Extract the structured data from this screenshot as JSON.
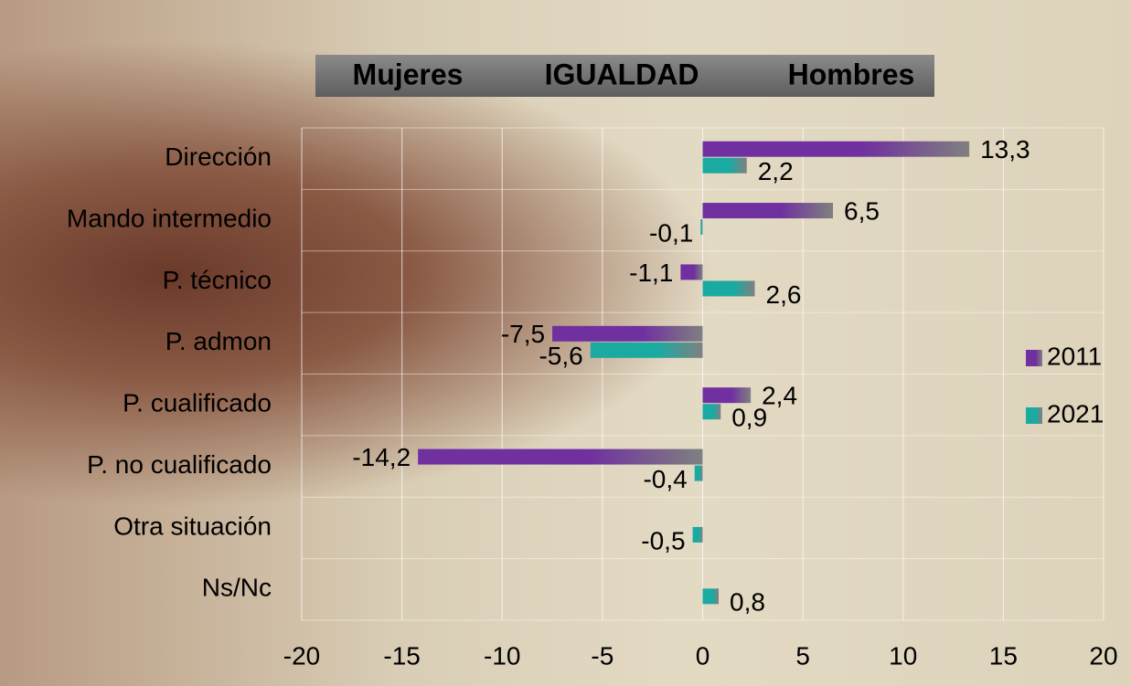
{
  "chart_data": {
    "type": "hbar",
    "title": [
      "Mujeres",
      "IGUALDAD",
      "Hombres"
    ],
    "categories": [
      "Dirección",
      "Mando intermedio",
      "P. técnico",
      "P. admon",
      "P. cualificado",
      "P. no cualificado",
      "Otra situación",
      "Ns/Nc"
    ],
    "series": [
      {
        "name": "2011",
        "color": "#7030a0",
        "values": [
          13.3,
          6.5,
          -1.1,
          -7.5,
          2.4,
          -14.2,
          null,
          null
        ],
        "value_labels": [
          "13,3",
          "6,5",
          "-1,1",
          "-7,5",
          "2,4",
          "-14,2",
          null,
          null
        ]
      },
      {
        "name": "2021",
        "color": "#1aaaa2",
        "values": [
          2.2,
          -0.1,
          2.6,
          -5.6,
          0.9,
          -0.4,
          -0.5,
          0.8
        ],
        "value_labels": [
          "2,2",
          "-0,1",
          "2,6",
          "-5,6",
          "0,9",
          "-0,4",
          "-0,5",
          "0,8"
        ]
      }
    ],
    "xlim": [
      -20,
      20
    ],
    "xticks": [
      -20,
      -15,
      -10,
      -5,
      0,
      5,
      10,
      15,
      20
    ],
    "grid": true
  }
}
